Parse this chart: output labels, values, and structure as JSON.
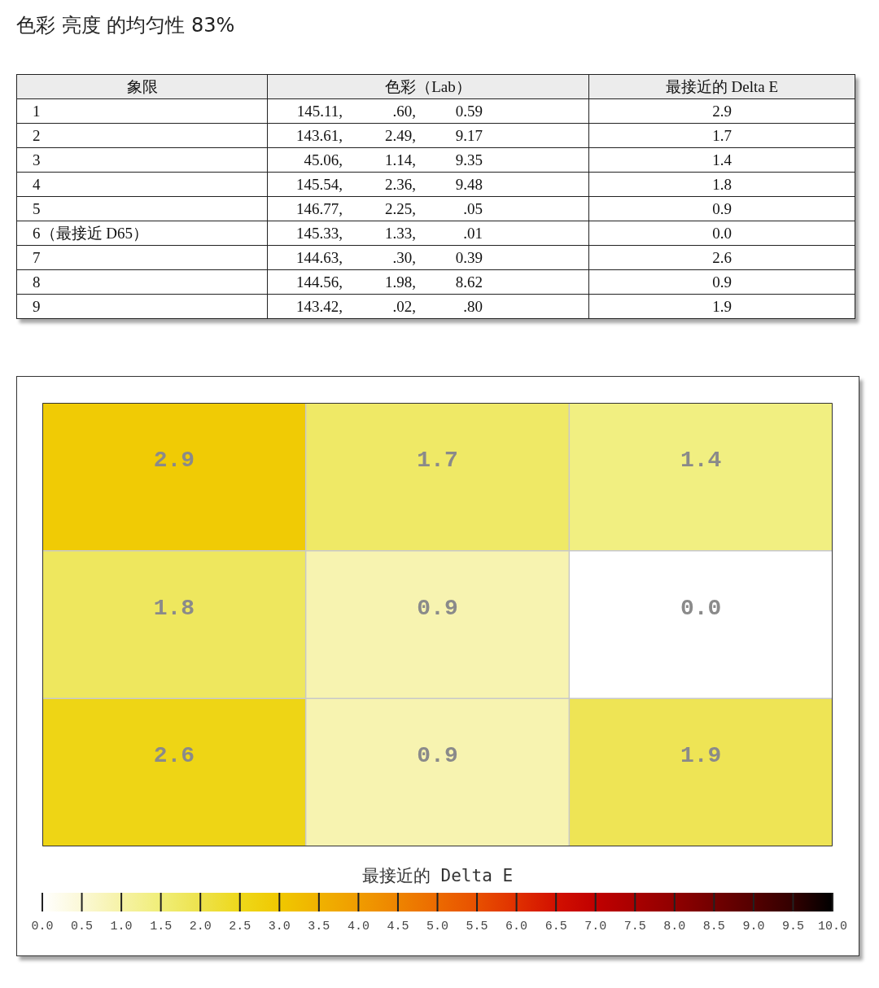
{
  "chart_data": [
    {
      "type": "other",
      "title": "色彩 亮度 的均匀性 83%",
      "categories": [
        "象限",
        "色彩（Lab）",
        "最接近的 Delta E"
      ],
      "cell_labels": [
        [
          "1",
          [
            "145.11,",
            ".60,",
            "0.59"
          ],
          "2.9"
        ],
        [
          "2",
          [
            "143.61,",
            "2.49,",
            "9.17"
          ],
          "1.7"
        ],
        [
          "3",
          [
            "45.06,",
            "1.14,",
            "9.35"
          ],
          "1.4"
        ],
        [
          "4",
          [
            "145.54,",
            "2.36,",
            "9.48"
          ],
          "1.8"
        ],
        [
          "5",
          [
            "146.77,",
            "2.25,",
            ".05"
          ],
          "0.9"
        ],
        [
          "6（最接近 D65）",
          [
            "145.33,",
            "1.33,",
            ".01"
          ],
          "0.0"
        ],
        [
          "7",
          [
            "144.63,",
            ".30,",
            "0.39"
          ],
          "2.6"
        ],
        [
          "8",
          [
            "144.56,",
            "1.98,",
            "8.62"
          ],
          "0.9"
        ],
        [
          "9",
          [
            "143.42,",
            ".02,",
            ".80"
          ],
          "1.9"
        ]
      ]
    },
    {
      "type": "heatmap",
      "categories": [
        null,
        null,
        null
      ],
      "y_categories": [
        null,
        null,
        null
      ],
      "cells": [
        [
          2.9,
          1.7,
          1.4
        ],
        [
          1.8,
          0.9,
          0.0
        ],
        [
          2.6,
          0.9,
          1.9
        ]
      ],
      "cell_labels": [
        [
          "2.9",
          "1.7",
          "1.4"
        ],
        [
          "1.8",
          "0.9",
          "0.0"
        ],
        [
          "2.6",
          "0.9",
          "1.9"
        ]
      ],
      "clabel": "最接近的 Delta E",
      "clim": [
        0,
        10
      ],
      "cticks": [
        {
          "value": 0,
          "label": "0.0"
        },
        {
          "value": 0.5,
          "label": "0.5"
        },
        {
          "value": 1,
          "label": "1.0"
        },
        {
          "value": 1.5,
          "label": "1.5"
        },
        {
          "value": 2,
          "label": "2.0"
        },
        {
          "value": 2.5,
          "label": "2.5"
        },
        {
          "value": 3,
          "label": "3.0"
        },
        {
          "value": 3.5,
          "label": "3.5"
        },
        {
          "value": 4,
          "label": "4.0"
        },
        {
          "value": 4.5,
          "label": "4.5"
        },
        {
          "value": 5,
          "label": "5.0"
        },
        {
          "value": 5.5,
          "label": "5.5"
        },
        {
          "value": 6,
          "label": "6.0"
        },
        {
          "value": 6.5,
          "label": "6.5"
        },
        {
          "value": 7,
          "label": "7.0"
        },
        {
          "value": 7.5,
          "label": "7.5"
        },
        {
          "value": 8,
          "label": "8.0"
        },
        {
          "value": 8.5,
          "label": "8.5"
        },
        {
          "value": 9,
          "label": "9.0"
        },
        {
          "value": 9.5,
          "label": "9.5"
        },
        {
          "value": 10,
          "label": "10.0"
        }
      ]
    }
  ]
}
